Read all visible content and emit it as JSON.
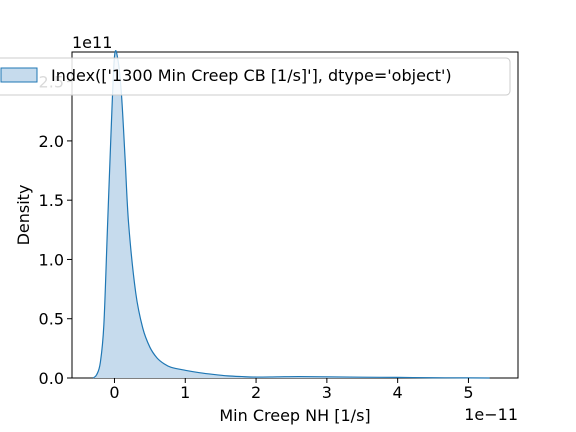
{
  "chart_data": {
    "type": "area",
    "title": "",
    "xlabel": "Min Creep NH [1/s]",
    "ylabel": "Density",
    "x_scale_label": "1e−11",
    "y_scale_label": "1e11",
    "x_ticks": [
      0,
      1,
      2,
      3,
      4,
      5
    ],
    "x_tick_labels": [
      "0",
      "1",
      "2",
      "3",
      "4",
      "5"
    ],
    "y_ticks": [
      0.0,
      0.5,
      1.0,
      1.5,
      2.0,
      2.5
    ],
    "y_tick_labels": [
      "0.0",
      "0.5",
      "1.0",
      "1.5",
      "2.0",
      "2.5"
    ],
    "xlim": [
      -0.6,
      5.7
    ],
    "ylim": [
      0.0,
      2.75
    ],
    "grid": false,
    "legend_position": "top-center",
    "colors": {
      "line": "#1f77b4",
      "fill": "#c6dbed"
    },
    "series": [
      {
        "name": "Index(['1300 Min Creep CB [1/s]'], dtype='object')",
        "x": [
          -0.3,
          -0.25,
          -0.2,
          -0.15,
          -0.1,
          -0.05,
          0.0,
          0.05,
          0.1,
          0.15,
          0.2,
          0.3,
          0.4,
          0.5,
          0.6,
          0.7,
          0.8,
          1.0,
          1.2,
          1.4,
          1.6,
          1.8,
          2.0,
          2.3,
          2.6,
          3.0,
          3.5,
          4.0,
          4.5,
          5.0,
          5.3
        ],
        "y": [
          0.0,
          0.03,
          0.13,
          0.45,
          1.25,
          2.05,
          2.71,
          2.68,
          2.38,
          1.85,
          1.3,
          0.72,
          0.42,
          0.26,
          0.17,
          0.12,
          0.09,
          0.065,
          0.045,
          0.03,
          0.018,
          0.012,
          0.008,
          0.01,
          0.012,
          0.01,
          0.007,
          0.005,
          0.002,
          0.001,
          0.0
        ]
      }
    ]
  }
}
